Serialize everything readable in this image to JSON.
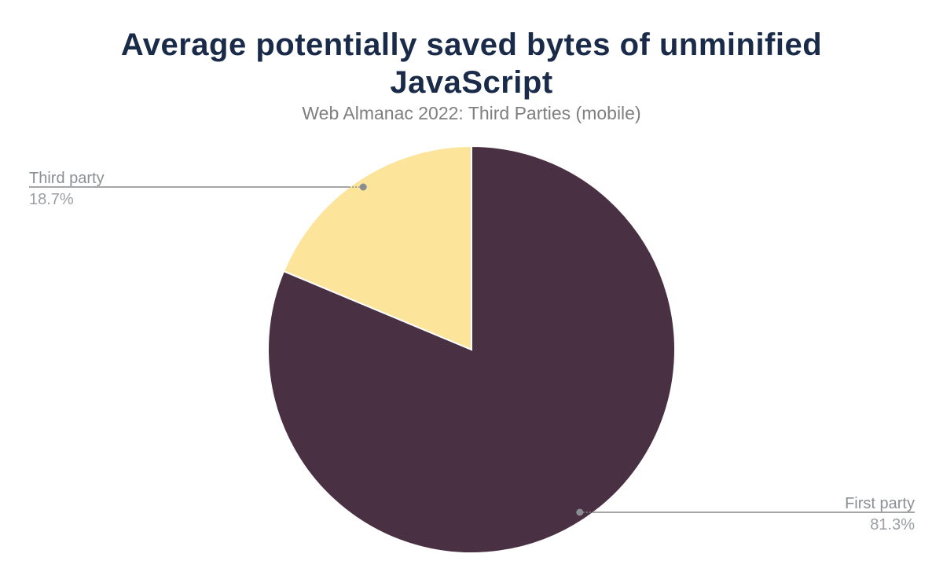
{
  "header": {
    "title": "Average potentially saved bytes of unminified JavaScript",
    "subtitle": "Web Almanac 2022: Third Parties (mobile)"
  },
  "chart_data": {
    "type": "pie",
    "title": "Average potentially saved bytes of unminified JavaScript",
    "subtitle": "Web Almanac 2022: Third Parties (mobile)",
    "start_angle": "top",
    "direction": "clockwise",
    "legend_position": "none (external labels with leader lines)",
    "slices": [
      {
        "label": "First party",
        "value_pct": 81.3,
        "display_pct": "81.3%",
        "color": "#493043",
        "label_side": "right"
      },
      {
        "label": "Third party",
        "value_pct": 18.7,
        "display_pct": "18.7%",
        "color": "#fce49b",
        "label_side": "left"
      }
    ]
  },
  "colors": {
    "background": "#ffffff",
    "title_text": "#1a2b49",
    "subtitle_text": "#7f7f7f",
    "label_name_text": "#8b8f93",
    "label_pct_text": "#9b9fa3",
    "leader_line": "#85898c",
    "leader_dot": "#8a8e92",
    "slice_separator": "#ffffff"
  }
}
